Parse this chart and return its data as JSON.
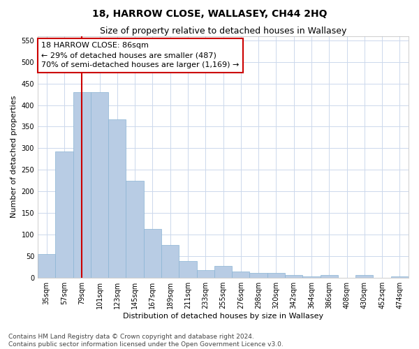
{
  "title": "18, HARROW CLOSE, WALLASEY, CH44 2HQ",
  "subtitle": "Size of property relative to detached houses in Wallasey",
  "xlabel": "Distribution of detached houses by size in Wallasey",
  "ylabel": "Number of detached properties",
  "categories": [
    "35sqm",
    "57sqm",
    "79sqm",
    "101sqm",
    "123sqm",
    "145sqm",
    "167sqm",
    "189sqm",
    "211sqm",
    "233sqm",
    "255sqm",
    "276sqm",
    "298sqm",
    "320sqm",
    "342sqm",
    "364sqm",
    "386sqm",
    "408sqm",
    "430sqm",
    "452sqm",
    "474sqm"
  ],
  "values": [
    55,
    293,
    430,
    430,
    367,
    225,
    113,
    75,
    38,
    17,
    27,
    14,
    10,
    10,
    5,
    3,
    6,
    0,
    5,
    0,
    3
  ],
  "bar_color": "#b8cce4",
  "bar_edge_color": "#8ab4d4",
  "vline_x": 2,
  "vline_color": "#cc0000",
  "annotation_text": "18 HARROW CLOSE: 86sqm\n← 29% of detached houses are smaller (487)\n70% of semi-detached houses are larger (1,169) →",
  "annotation_box_color": "#ffffff",
  "annotation_box_edge_color": "#cc0000",
  "ylim": [
    0,
    560
  ],
  "yticks": [
    0,
    50,
    100,
    150,
    200,
    250,
    300,
    350,
    400,
    450,
    500,
    550
  ],
  "footer_line1": "Contains HM Land Registry data © Crown copyright and database right 2024.",
  "footer_line2": "Contains public sector information licensed under the Open Government Licence v3.0.",
  "bg_color": "#ffffff",
  "grid_color": "#ccd8ec",
  "title_fontsize": 10,
  "subtitle_fontsize": 9,
  "axis_label_fontsize": 8,
  "tick_fontsize": 7,
  "annotation_fontsize": 8,
  "footer_fontsize": 6.5
}
